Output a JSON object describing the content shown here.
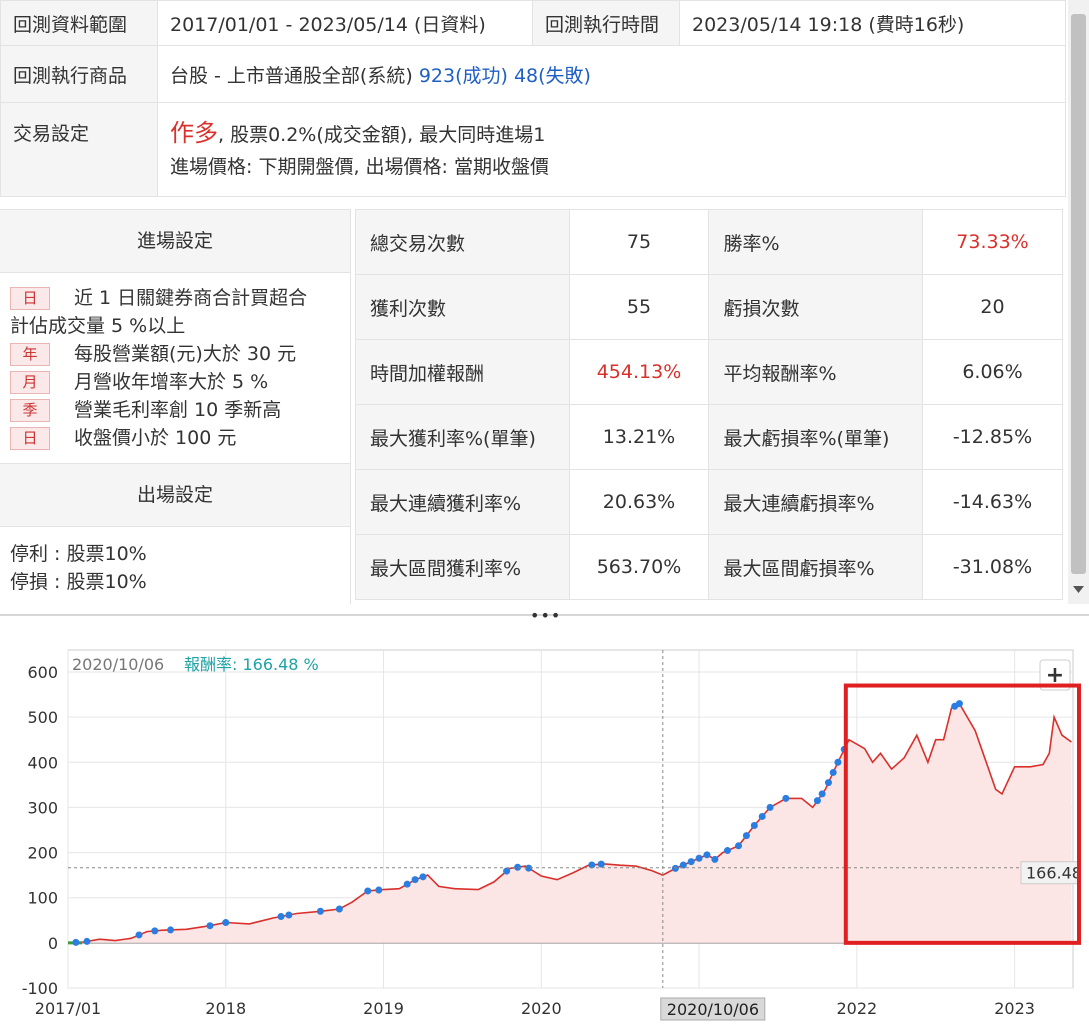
{
  "info": {
    "range_label": "回測資料範圍",
    "range_value": "2017/01/01 - 2023/05/14 (日資料)",
    "time_label": "回測執行時間",
    "time_value": "2023/05/14 19:18 (費時16秒)",
    "product_label": "回測執行商品",
    "product_value": "台股 - 上市普通股全部(系統)",
    "product_success": "923(成功)",
    "product_fail": "48(失敗)",
    "trade_label": "交易設定",
    "trade_direction": "作多",
    "trade_fee": ", 股票0.2%(成交金額), 最大同時進場1",
    "trade_prices": "進場價格: 下期開盤價, 出場價格: 當期收盤價"
  },
  "entry": {
    "title": "進場設定",
    "conditions": [
      {
        "badge": "日",
        "text": "近 1 日關鍵券商合計買超合"
      },
      {
        "badge": "",
        "text": "計佔成交量 5 %以上"
      },
      {
        "badge": "年",
        "text": "每股營業額(元)大於 30 元"
      },
      {
        "badge": "月",
        "text": "月營收年增率大於 5 %"
      },
      {
        "badge": "季",
        "text": "營業毛利率創 10 季新高"
      },
      {
        "badge": "日",
        "text": "收盤價小於 100 元"
      }
    ]
  },
  "exit": {
    "title": "出場設定",
    "take_profit": "停利 : 股票10%",
    "stop_loss": "停損 : 股票10%"
  },
  "stats": [
    {
      "k1": "總交易次數",
      "v1": "75",
      "k2": "勝率%",
      "v2": "73.33%",
      "v2_red": true
    },
    {
      "k1": "獲利次數",
      "v1": "55",
      "k2": "虧損次數",
      "v2": "20"
    },
    {
      "k1": "時間加權報酬",
      "v1": "454.13%",
      "v1_red": true,
      "k2": "平均報酬率%",
      "v2": "6.06%"
    },
    {
      "k1": "最大獲利率%(單筆)",
      "v1": "13.21%",
      "k2": "最大虧損率%(單筆)",
      "v2": "-12.85%"
    },
    {
      "k1": "最大連續獲利率%",
      "v1": "20.63%",
      "k2": "最大連續虧損率%",
      "v2": "-14.63%"
    },
    {
      "k1": "最大區間獲利率%",
      "v1": "563.70%",
      "k2": "最大區間虧損率%",
      "v2": "-31.08%"
    }
  ],
  "divider_dots": "•••",
  "chart_data": {
    "type": "line",
    "cursor_date": "2020/10/06",
    "cursor_label": "報酬率: 166.48 %",
    "cursor_value": 166.48,
    "cursor_value_label": "166.48",
    "cursor_date_label": "2020/10/06",
    "zoom_button": "+",
    "ylim": [
      -100,
      600
    ],
    "y_ticks": [
      -100,
      0,
      100,
      200,
      300,
      400,
      500,
      600
    ],
    "x_ticks": [
      {
        "label": "2017/01",
        "x": 2017.0
      },
      {
        "label": "2018",
        "x": 2018.0
      },
      {
        "label": "2019",
        "x": 2019.0
      },
      {
        "label": "2020",
        "x": 2020.0
      },
      {
        "label": "2021",
        "x": 2021.0
      },
      {
        "label": "2022",
        "x": 2022.0
      },
      {
        "label": "2023",
        "x": 2023.0
      }
    ],
    "xlim": [
      2017.0,
      2023.37
    ],
    "line_color": "#d9302b",
    "fill_color": "#fbe5e5",
    "marker_color": "#2a7de1",
    "highlight_box": {
      "x_from": 2021.93,
      "x_to": 2023.37,
      "y_from": 0,
      "y_to": 570,
      "color": "#e02020"
    },
    "series": [
      {
        "values": [
          [
            2017.0,
            0
          ],
          [
            2017.1,
            2
          ],
          [
            2017.2,
            8
          ],
          [
            2017.3,
            5
          ],
          [
            2017.4,
            10
          ],
          [
            2017.5,
            25
          ],
          [
            2017.6,
            28
          ],
          [
            2017.75,
            30
          ],
          [
            2017.9,
            38
          ],
          [
            2018.0,
            45
          ],
          [
            2018.15,
            42
          ],
          [
            2018.3,
            55
          ],
          [
            2018.45,
            65
          ],
          [
            2018.6,
            70
          ],
          [
            2018.72,
            75
          ],
          [
            2018.8,
            90
          ],
          [
            2018.9,
            115
          ],
          [
            2019.0,
            118
          ],
          [
            2019.1,
            120
          ],
          [
            2019.2,
            140
          ],
          [
            2019.28,
            150
          ],
          [
            2019.35,
            125
          ],
          [
            2019.45,
            120
          ],
          [
            2019.6,
            118
          ],
          [
            2019.7,
            135
          ],
          [
            2019.8,
            165
          ],
          [
            2019.9,
            170
          ],
          [
            2020.0,
            148
          ],
          [
            2020.1,
            140
          ],
          [
            2020.2,
            155
          ],
          [
            2020.3,
            172
          ],
          [
            2020.4,
            175
          ],
          [
            2020.5,
            172
          ],
          [
            2020.6,
            170
          ],
          [
            2020.7,
            160
          ],
          [
            2020.77,
            150
          ],
          [
            2020.85,
            165
          ],
          [
            2020.95,
            180
          ],
          [
            2021.05,
            195
          ],
          [
            2021.1,
            185
          ],
          [
            2021.15,
            200
          ],
          [
            2021.25,
            215
          ],
          [
            2021.35,
            260
          ],
          [
            2021.45,
            300
          ],
          [
            2021.55,
            320
          ],
          [
            2021.65,
            320
          ],
          [
            2021.72,
            300
          ],
          [
            2021.8,
            340
          ],
          [
            2021.88,
            400
          ],
          [
            2021.95,
            450
          ],
          [
            2022.05,
            430
          ],
          [
            2022.1,
            400
          ],
          [
            2022.15,
            420
          ],
          [
            2022.22,
            385
          ],
          [
            2022.3,
            410
          ],
          [
            2022.38,
            460
          ],
          [
            2022.45,
            400
          ],
          [
            2022.5,
            450
          ],
          [
            2022.55,
            450
          ],
          [
            2022.6,
            520
          ],
          [
            2022.65,
            530
          ],
          [
            2022.75,
            470
          ],
          [
            2022.8,
            420
          ],
          [
            2022.88,
            340
          ],
          [
            2022.92,
            330
          ],
          [
            2022.96,
            360
          ],
          [
            2023.0,
            390
          ],
          [
            2023.1,
            390
          ],
          [
            2023.18,
            395
          ],
          [
            2023.22,
            420
          ],
          [
            2023.25,
            500
          ],
          [
            2023.3,
            460
          ],
          [
            2023.36,
            445
          ]
        ]
      }
    ],
    "markers": [
      2017.05,
      2017.12,
      2017.45,
      2017.55,
      2017.65,
      2017.9,
      2018.0,
      2018.35,
      2018.4,
      2018.6,
      2018.72,
      2018.9,
      2018.97,
      2019.15,
      2019.2,
      2019.25,
      2019.78,
      2019.85,
      2019.92,
      2020.32,
      2020.38,
      2020.85,
      2020.9,
      2020.95,
      2021.0,
      2021.05,
      2021.1,
      2021.18,
      2021.25,
      2021.3,
      2021.35,
      2021.4,
      2021.45,
      2021.55,
      2021.75,
      2021.78,
      2021.82,
      2021.85,
      2021.88,
      2021.92,
      2022.62,
      2022.65
    ]
  }
}
